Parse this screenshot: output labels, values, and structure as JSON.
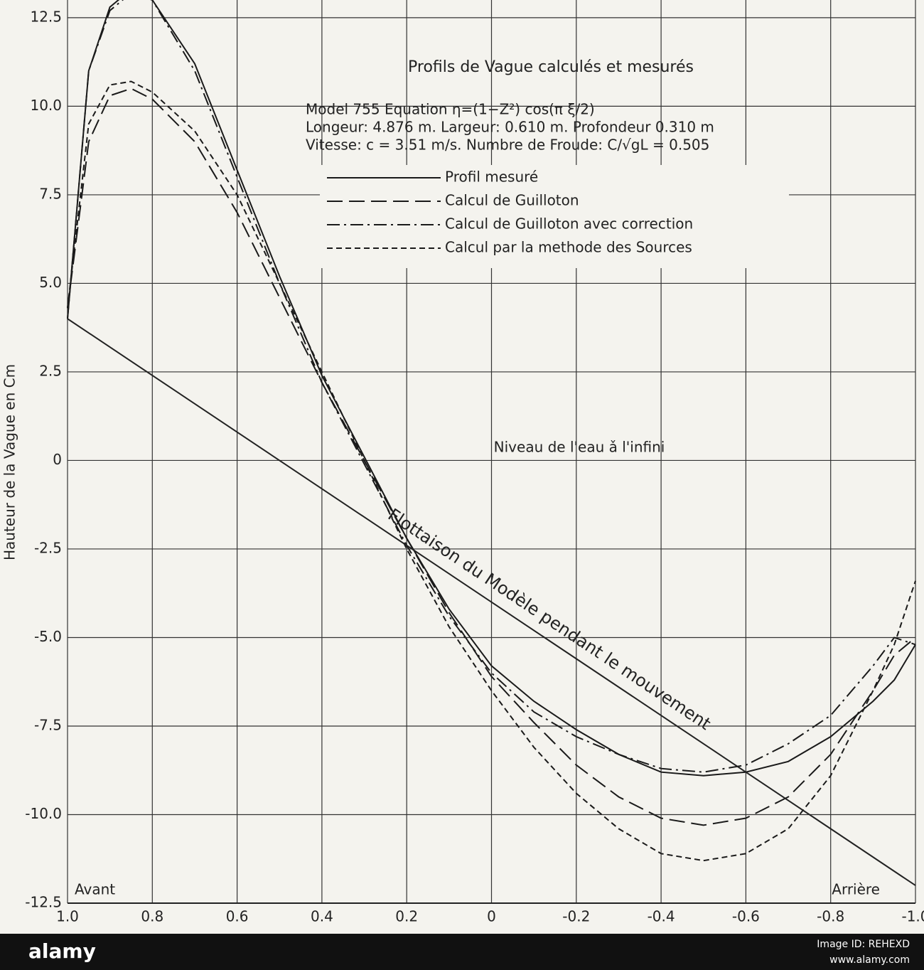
{
  "chart_data": {
    "type": "line",
    "title": "Profils de Vague calculés et mesurés",
    "annotations": [
      "Model 755 Equation η=(1−Z²) cos(π ξ/2)",
      "Longeur: 4.876 m. Largeur: 0.610 m. Profondeur 0.310 m",
      "Vitesse: c = 3.51 m/s. Numbre de Froude: C/√gL = 0.505",
      "Niveau de l'eau ǎ l'infini",
      "Flottaison du Modèle pendant le mouvement",
      "Avant",
      "Arrière"
    ],
    "y_label": "Hauteur de la Vague en Cm",
    "x": [
      1.0,
      0.95,
      0.9,
      0.85,
      0.8,
      0.7,
      0.6,
      0.5,
      0.4,
      0.3,
      0.2,
      0.1,
      0,
      -0.1,
      -0.2,
      -0.3,
      -0.4,
      -0.5,
      -0.6,
      -0.7,
      -0.8,
      -0.9,
      -0.95,
      -1.0
    ],
    "series": [
      {
        "name": "Profil mesuré",
        "color": "#1a1a1a",
        "linestyle": "solid",
        "values": [
          4.0,
          11.0,
          12.8,
          13.3,
          13.0,
          11.2,
          8.2,
          5.2,
          2.4,
          0.1,
          -2.2,
          -4.2,
          -5.8,
          -6.8,
          -7.6,
          -8.3,
          -8.8,
          -8.9,
          -8.8,
          -8.5,
          -7.8,
          -6.8,
          -6.2,
          -5.2
        ]
      },
      {
        "name": "Calcul de Guilloton",
        "color": "#1a1a1a",
        "linestyle": "dashed",
        "values": [
          4.3,
          9.0,
          10.3,
          10.5,
          10.2,
          9.0,
          7.0,
          4.6,
          2.2,
          0.0,
          -2.2,
          -4.3,
          -6.1,
          -7.4,
          -8.6,
          -9.5,
          -10.1,
          -10.3,
          -10.1,
          -9.5,
          -8.3,
          -6.5,
          -5.5,
          -5.0
        ]
      },
      {
        "name": "Calcul de Guilloton avec correction",
        "color": "#1a1a1a",
        "linestyle": "dashdot",
        "values": [
          4.0,
          11.0,
          12.7,
          13.2,
          13.0,
          11.0,
          8.0,
          5.0,
          2.2,
          -0.1,
          -2.4,
          -4.4,
          -6.0,
          -7.1,
          -7.8,
          -8.3,
          -8.7,
          -8.8,
          -8.6,
          -8.0,
          -7.2,
          -5.8,
          -5.0,
          -5.2
        ]
      },
      {
        "name": "Calcul par la methode des Sources",
        "color": "#1a1a1a",
        "linestyle": "dotted",
        "values": [
          4.3,
          9.5,
          10.6,
          10.7,
          10.4,
          9.3,
          7.5,
          5.0,
          2.5,
          0.0,
          -2.5,
          -4.7,
          -6.5,
          -8.1,
          -9.4,
          -10.4,
          -11.1,
          -11.3,
          -11.1,
          -10.4,
          -8.9,
          -6.5,
          -5.2,
          -3.4
        ]
      }
    ],
    "waterline": {
      "x": [
        1.0,
        -1.0
      ],
      "values": [
        4.0,
        -12.0
      ]
    },
    "xlim": [
      1.0,
      -1.0
    ],
    "ylim": [
      -12.5,
      13.0
    ],
    "xticks": [
      {
        "value": 1.0,
        "label": "1.0"
      },
      0.8,
      0.6,
      0.4,
      0.2,
      0,
      -0.2,
      -0.4,
      -0.6,
      -0.8,
      {
        "value": -1.0,
        "label": "-1.0"
      }
    ],
    "yticks": [
      -12.5,
      {
        "value": -10.0,
        "label": "-10.0"
      },
      -7.5,
      {
        "value": -5.0,
        "label": "-5.0"
      },
      -2.5,
      0,
      2.5,
      {
        "value": 5.0,
        "label": "5.0"
      },
      7.5,
      {
        "value": 10.0,
        "label": "10.0"
      },
      12.5
    ],
    "grid": true
  },
  "footer": {
    "logo": "alamy",
    "image_id": "Image ID: REHEXD",
    "url": "www.alamy.com"
  }
}
